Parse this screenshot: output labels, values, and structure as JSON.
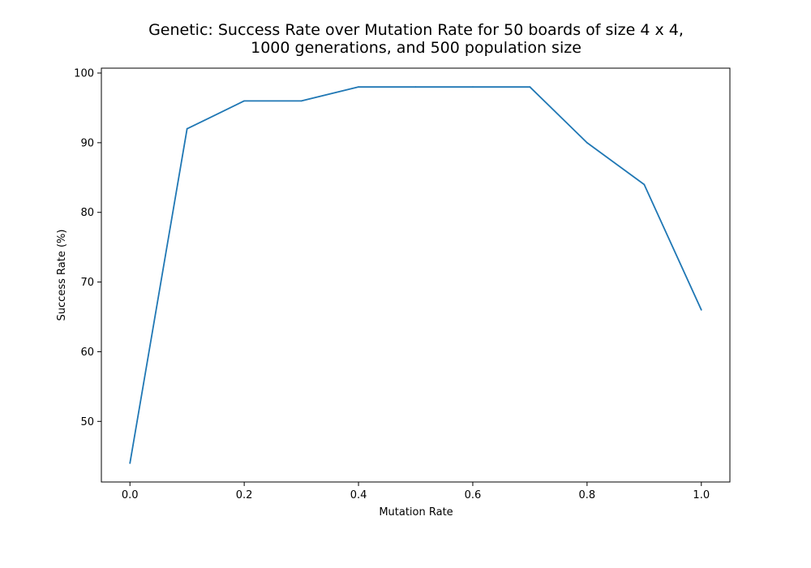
{
  "chart_data": {
    "type": "line",
    "title_lines": [
      "Genetic: Success Rate over Mutation Rate for 50 boards of size 4 x 4,",
      "1000 generations, and 500 population size"
    ],
    "xlabel": "Mutation Rate",
    "ylabel": "Success Rate (%)",
    "xlim": [
      -0.05,
      1.05
    ],
    "ylim": [
      41.3,
      100.7
    ],
    "xticks": [
      0.0,
      0.2,
      0.4,
      0.6,
      0.8,
      1.0
    ],
    "xtick_labels": [
      "0.0",
      "0.2",
      "0.4",
      "0.6",
      "0.8",
      "1.0"
    ],
    "yticks": [
      50,
      60,
      70,
      80,
      90,
      100
    ],
    "ytick_labels": [
      "50",
      "60",
      "70",
      "80",
      "90",
      "100"
    ],
    "grid": false,
    "series": [
      {
        "color": "#1f77b4",
        "x": [
          0.0,
          0.1,
          0.2,
          0.3,
          0.4,
          0.5,
          0.6,
          0.7,
          0.8,
          0.9,
          1.0
        ],
        "y": [
          44,
          92,
          96,
          96,
          98,
          98,
          98,
          98,
          90,
          84,
          66
        ]
      }
    ]
  }
}
